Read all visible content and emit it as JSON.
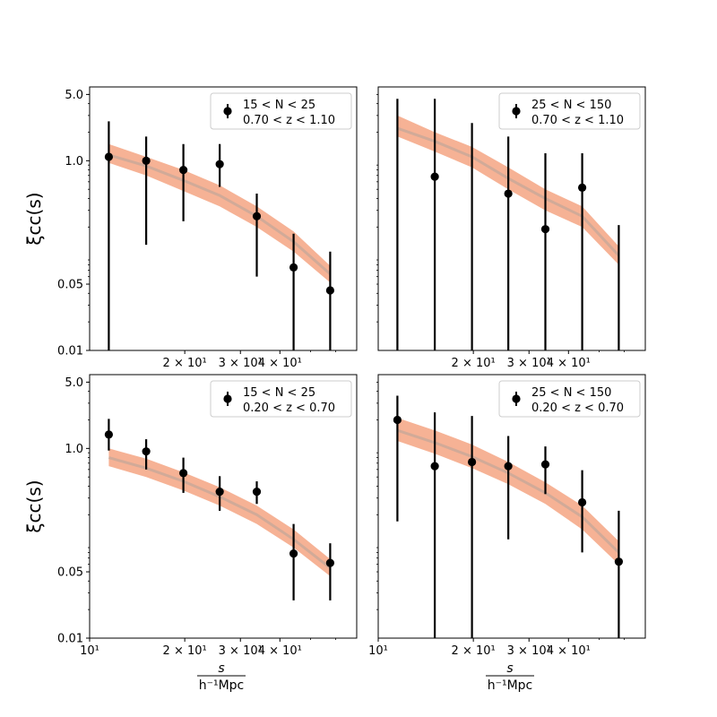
{
  "chart_data": [
    {
      "type": "scatter",
      "panel": "top-left",
      "legend_line1": "15 < N < 25",
      "legend_line2": "0.70 < z < 1.10",
      "xscale": "log",
      "yscale": "log",
      "xlim": [
        10,
        70
      ],
      "ylim": [
        0.01,
        6
      ],
      "ylabel": "ξcc(s)",
      "xlabel": "",
      "xticks": [
        {
          "v": 20,
          "label": "2 × 10¹"
        },
        {
          "v": 30,
          "label": "3 × 10¹"
        },
        {
          "v": 40,
          "label": "4 × 10¹"
        }
      ],
      "yticks": [
        {
          "v": 5,
          "label": "5.0"
        },
        {
          "v": 1,
          "label": "1.0"
        },
        {
          "v": 0.05,
          "label": "0.05"
        },
        {
          "v": 0.01,
          "label": "0.01"
        }
      ],
      "points": [
        {
          "x": 11.5,
          "y": 1.1,
          "lo": 0.01,
          "hi": 2.6
        },
        {
          "x": 15.1,
          "y": 1.0,
          "lo": 0.13,
          "hi": 1.8
        },
        {
          "x": 19.8,
          "y": 0.8,
          "lo": 0.23,
          "hi": 1.5
        },
        {
          "x": 25.8,
          "y": 0.92,
          "lo": 0.53,
          "hi": 1.5
        },
        {
          "x": 33.8,
          "y": 0.26,
          "lo": 0.06,
          "hi": 0.45
        },
        {
          "x": 44.2,
          "y": 0.075,
          "lo": 0.01,
          "hi": 0.17
        },
        {
          "x": 57.7,
          "y": 0.043,
          "lo": 0.01,
          "hi": 0.11
        }
      ],
      "band_x": [
        11.5,
        15.1,
        19.8,
        25.8,
        33.8,
        44.2,
        57.7
      ],
      "band_low": [
        0.95,
        0.7,
        0.48,
        0.33,
        0.2,
        0.11,
        0.052
      ],
      "band_high": [
        1.5,
        1.1,
        0.8,
        0.55,
        0.33,
        0.18,
        0.078
      ],
      "band_mid": [
        1.15,
        0.88,
        0.62,
        0.43,
        0.26,
        0.14,
        0.064
      ]
    },
    {
      "type": "scatter",
      "panel": "top-right",
      "legend_line1": "25 < N < 150",
      "legend_line2": "0.70 < z < 1.10",
      "xscale": "log",
      "yscale": "log",
      "xlim": [
        10,
        70
      ],
      "ylim": [
        0.01,
        6
      ],
      "ylabel": "",
      "xlabel": "",
      "xticks": [
        {
          "v": 20,
          "label": "2 × 10¹"
        },
        {
          "v": 30,
          "label": "3 × 10¹"
        },
        {
          "v": 40,
          "label": "4 × 10¹"
        }
      ],
      "yticks": [],
      "points": [
        {
          "x": 11.5,
          "y": null,
          "lo": 0.01,
          "hi": 4.5
        },
        {
          "x": 15.1,
          "y": 0.68,
          "lo": 0.01,
          "hi": 4.5
        },
        {
          "x": 19.8,
          "y": null,
          "lo": 0.01,
          "hi": 2.5
        },
        {
          "x": 25.8,
          "y": 0.45,
          "lo": 0.01,
          "hi": 1.8
        },
        {
          "x": 33.8,
          "y": 0.19,
          "lo": 0.01,
          "hi": 1.2
        },
        {
          "x": 44.2,
          "y": 0.52,
          "lo": 0.01,
          "hi": 1.2
        },
        {
          "x": 57.7,
          "y": null,
          "lo": 0.01,
          "hi": 0.21
        }
      ],
      "band_x": [
        11.5,
        15.1,
        19.8,
        25.8,
        33.8,
        44.2,
        57.7
      ],
      "band_low": [
        1.8,
        1.25,
        0.85,
        0.5,
        0.3,
        0.2,
        0.08
      ],
      "band_high": [
        3.0,
        2.0,
        1.4,
        0.85,
        0.5,
        0.33,
        0.125
      ],
      "band_mid": [
        2.2,
        1.6,
        1.1,
        0.65,
        0.4,
        0.26,
        0.1
      ]
    },
    {
      "type": "scatter",
      "panel": "bottom-left",
      "legend_line1": "15 < N < 25",
      "legend_line2": "0.20 < z < 0.70",
      "xscale": "log",
      "yscale": "log",
      "xlim": [
        10,
        70
      ],
      "ylim": [
        0.01,
        6
      ],
      "ylabel": "ξcc(s)",
      "xlabel": "s / h⁻¹Mpc",
      "xticks": [
        {
          "v": 10,
          "label": "10¹"
        },
        {
          "v": 20,
          "label": "2 × 10¹"
        },
        {
          "v": 30,
          "label": "3 × 10¹"
        },
        {
          "v": 40,
          "label": "4 × 10¹"
        }
      ],
      "yticks": [
        {
          "v": 5,
          "label": "5.0"
        },
        {
          "v": 1,
          "label": "1.0"
        },
        {
          "v": 0.05,
          "label": "0.05"
        },
        {
          "v": 0.01,
          "label": "0.01"
        }
      ],
      "points": [
        {
          "x": 11.5,
          "y": 1.4,
          "lo": 0.95,
          "hi": 2.05
        },
        {
          "x": 15.1,
          "y": 0.93,
          "lo": 0.6,
          "hi": 1.25
        },
        {
          "x": 19.8,
          "y": 0.55,
          "lo": 0.34,
          "hi": 0.8
        },
        {
          "x": 25.8,
          "y": 0.35,
          "lo": 0.22,
          "hi": 0.51
        },
        {
          "x": 33.8,
          "y": 0.35,
          "lo": 0.26,
          "hi": 0.45
        },
        {
          "x": 44.2,
          "y": 0.078,
          "lo": 0.025,
          "hi": 0.16
        },
        {
          "x": 57.7,
          "y": 0.062,
          "lo": 0.025,
          "hi": 0.1
        }
      ],
      "band_x": [
        11.5,
        15.1,
        19.8,
        25.8,
        33.8,
        44.2,
        57.7
      ],
      "band_low": [
        0.65,
        0.5,
        0.36,
        0.25,
        0.16,
        0.09,
        0.045
      ],
      "band_high": [
        1.0,
        0.78,
        0.56,
        0.39,
        0.25,
        0.14,
        0.068
      ],
      "band_mid": [
        0.8,
        0.62,
        0.45,
        0.31,
        0.2,
        0.11,
        0.055
      ]
    },
    {
      "type": "scatter",
      "panel": "bottom-right",
      "legend_line1": "25 < N < 150",
      "legend_line2": "0.20 < z < 0.70",
      "xscale": "log",
      "yscale": "log",
      "xlim": [
        10,
        70
      ],
      "ylim": [
        0.01,
        6
      ],
      "ylabel": "",
      "xlabel": "s / h⁻¹Mpc",
      "xticks": [
        {
          "v": 10,
          "label": "10¹"
        },
        {
          "v": 20,
          "label": "2 × 10¹"
        },
        {
          "v": 30,
          "label": "3 × 10¹"
        },
        {
          "v": 40,
          "label": "4 × 10¹"
        }
      ],
      "yticks": [],
      "points": [
        {
          "x": 11.5,
          "y": 2.0,
          "lo": 0.17,
          "hi": 3.6
        },
        {
          "x": 15.1,
          "y": 0.65,
          "lo": 0.01,
          "hi": 2.4
        },
        {
          "x": 19.8,
          "y": 0.72,
          "lo": 0.01,
          "hi": 2.2
        },
        {
          "x": 25.8,
          "y": 0.65,
          "lo": 0.11,
          "hi": 1.35
        },
        {
          "x": 33.8,
          "y": 0.68,
          "lo": 0.33,
          "hi": 1.05
        },
        {
          "x": 44.2,
          "y": 0.27,
          "lo": 0.08,
          "hi": 0.59
        },
        {
          "x": 57.7,
          "y": 0.064,
          "lo": 0.01,
          "hi": 0.22
        }
      ],
      "band_x": [
        11.5,
        15.1,
        19.8,
        25.8,
        33.8,
        44.2,
        57.7
      ],
      "band_low": [
        1.2,
        0.88,
        0.62,
        0.42,
        0.26,
        0.14,
        0.06
      ],
      "band_high": [
        2.1,
        1.55,
        1.1,
        0.72,
        0.44,
        0.25,
        0.105
      ],
      "band_mid": [
        1.55,
        1.15,
        0.82,
        0.55,
        0.34,
        0.19,
        0.08
      ]
    }
  ],
  "colors": {
    "band_fill": "#f4a582",
    "band_mid_line": "#c8a898",
    "marker": "#000000",
    "legend_border": "#cccccc",
    "axis": "#000000"
  }
}
